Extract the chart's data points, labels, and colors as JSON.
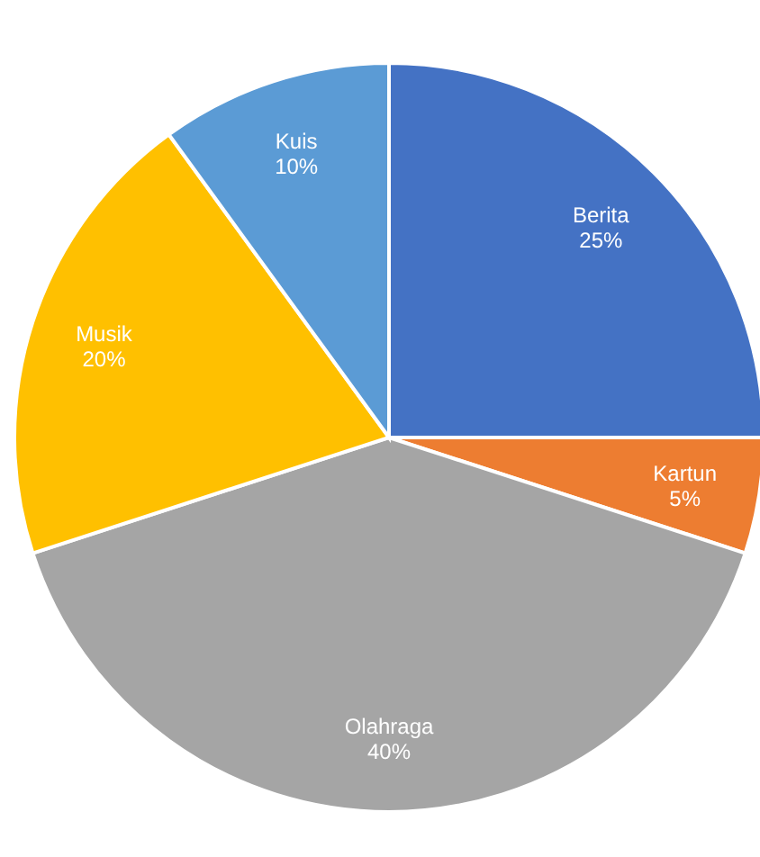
{
  "chart_data": {
    "type": "pie",
    "categories": [
      "Berita",
      "Kartun",
      "Olahraga",
      "Musik",
      "Kuis"
    ],
    "values": [
      25,
      5,
      40,
      20,
      10
    ],
    "value_labels": [
      "25%",
      "5%",
      "40%",
      "20%",
      "10%"
    ],
    "colors": [
      "#4472c4",
      "#ed7d31",
      "#a5a5a5",
      "#ffc000",
      "#5b9bd5"
    ]
  }
}
